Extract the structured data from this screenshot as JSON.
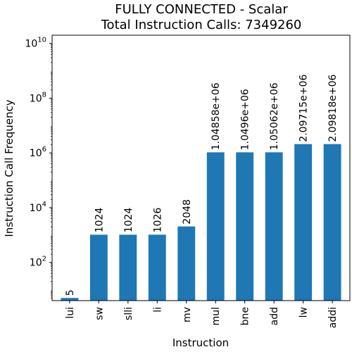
{
  "chart_data": {
    "type": "bar",
    "title": "FULLY CONNECTED - Scalar",
    "subtitle": "Total Instruction Calls: 7349260",
    "xlabel": "Instruction",
    "ylabel": "Instruction Call Frequency",
    "yscale": "log",
    "ylim": [
      4,
      20000000000
    ],
    "yticks": [
      {
        "value": 100,
        "base": "10",
        "exp": "2"
      },
      {
        "value": 10000,
        "base": "10",
        "exp": "4"
      },
      {
        "value": 1000000,
        "base": "10",
        "exp": "6"
      },
      {
        "value": 100000000,
        "base": "10",
        "exp": "8"
      },
      {
        "value": 10000000000,
        "base": "10",
        "exp": "10"
      }
    ],
    "categories": [
      "lui",
      "sw",
      "slli",
      "li",
      "mv",
      "mul",
      "bne",
      "add",
      "lw",
      "addi"
    ],
    "values": [
      5,
      1024,
      1024,
      1026,
      2048,
      1048580,
      1049600,
      1050620,
      2097150,
      2098180
    ],
    "value_labels": [
      "5",
      "1024",
      "1024",
      "1026",
      "2048",
      "1.04858e+06",
      "1.0496e+06",
      "1.05062e+06",
      "2.09715e+06",
      "2.09818e+06"
    ],
    "bar_color": "#1f77b4",
    "grid": false,
    "legend": "none"
  }
}
